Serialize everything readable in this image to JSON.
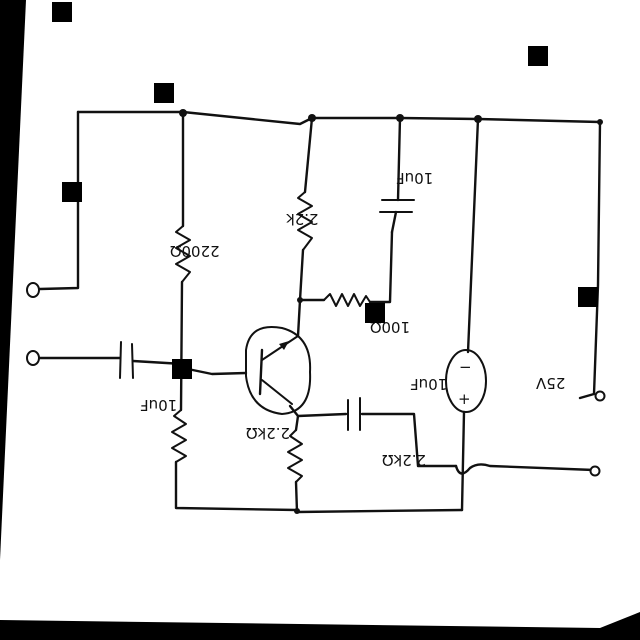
{
  "labels": {
    "r_top_left": "2200Ω",
    "r_top_mid": "2.2k",
    "r_bottom_left": "2.2kΩ",
    "r_bottom_mid": "2.2kΩ",
    "r_collector_load": "100Ω",
    "cap_input": "10uF",
    "cap_top": "10uF",
    "cap_emitter": "10uF",
    "source": "25V"
  },
  "source_signs": {
    "top": "−",
    "bottom": "+"
  }
}
